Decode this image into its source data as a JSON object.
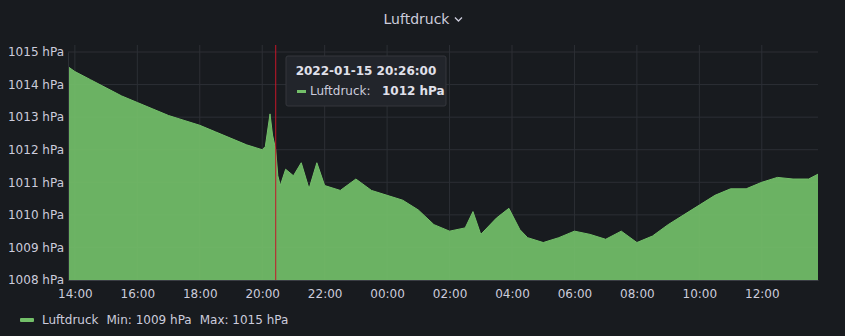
{
  "chart_data": {
    "type": "area",
    "title": "Luftdruck",
    "x": [
      13.78,
      14,
      14.5,
      15,
      15.5,
      16,
      16.5,
      17,
      17.5,
      18,
      18.5,
      19,
      19.5,
      20,
      20.1,
      20.25,
      20.33,
      20.433,
      20.5,
      20.58,
      20.75,
      21,
      21.25,
      21.5,
      21.75,
      22,
      22.5,
      23,
      23.5,
      24,
      24.5,
      25,
      25.5,
      26,
      26.5,
      26.75,
      27,
      27.5,
      27.9,
      28.25,
      28.5,
      29,
      29.5,
      30,
      30.5,
      31,
      31.5,
      32,
      32.5,
      33,
      33.5,
      34,
      34.5,
      35,
      35.5,
      36,
      36.5,
      37,
      37.5,
      37.8
    ],
    "series": [
      {
        "name": "Luftdruck",
        "color": "#73bf69",
        "values": [
          1014.55,
          1014.4,
          1014.15,
          1013.9,
          1013.65,
          1013.45,
          1013.25,
          1013.05,
          1012.9,
          1012.75,
          1012.55,
          1012.35,
          1012.15,
          1012.0,
          1012.1,
          1013.1,
          1012.45,
          1012.0,
          1011.2,
          1010.9,
          1011.4,
          1011.2,
          1011.6,
          1010.8,
          1011.6,
          1010.9,
          1010.75,
          1011.1,
          1010.75,
          1010.6,
          1010.45,
          1010.15,
          1009.7,
          1009.5,
          1009.6,
          1010.1,
          1009.4,
          1009.9,
          1010.2,
          1009.55,
          1009.3,
          1009.15,
          1009.3,
          1009.5,
          1009.4,
          1009.25,
          1009.5,
          1009.15,
          1009.35,
          1009.7,
          1010.0,
          1010.3,
          1010.6,
          1010.8,
          1010.8,
          1011.0,
          1011.15,
          1011.1,
          1011.1,
          1011.25
        ],
        "stats": [
          {
            "value": 1009,
            "label": "Min: 1009 hPa"
          },
          {
            "value": 1015,
            "label": "Max: 1015 hPa"
          }
        ]
      }
    ],
    "xlim": [
      13.78,
      37.8
    ],
    "xticks": [
      {
        "value": 14,
        "label": "14:00"
      },
      {
        "value": 16,
        "label": "16:00"
      },
      {
        "value": 18,
        "label": "18:00"
      },
      {
        "value": 20,
        "label": "20:00"
      },
      {
        "value": 22,
        "label": "22:00"
      },
      {
        "value": 24,
        "label": "00:00"
      },
      {
        "value": 26,
        "label": "02:00"
      },
      {
        "value": 28,
        "label": "04:00"
      },
      {
        "value": 30,
        "label": "06:00"
      },
      {
        "value": 32,
        "label": "08:00"
      },
      {
        "value": 34,
        "label": "10:00"
      },
      {
        "value": 36,
        "label": "12:00"
      }
    ],
    "ylim": [
      1008,
      1015
    ],
    "yticks": [
      {
        "value": 1008,
        "label": "1008 hPa"
      },
      {
        "value": 1009,
        "label": "1009 hPa"
      },
      {
        "value": 1010,
        "label": "1010 hPa"
      },
      {
        "value": 1011,
        "label": "1011 hPa"
      },
      {
        "value": 1012,
        "label": "1012 hPa"
      },
      {
        "value": 1013,
        "label": "1013 hPa"
      },
      {
        "value": 1014,
        "label": "1014 hPa"
      },
      {
        "value": 1015,
        "label": "1015 hPa"
      }
    ],
    "grid": true,
    "legend": "bottom",
    "tooltip": {
      "x": 20.433,
      "title": "2022-01-15 20:26:00",
      "label": "Luftdruck:",
      "value": 1012,
      "value_label": "1012 hPa"
    }
  }
}
